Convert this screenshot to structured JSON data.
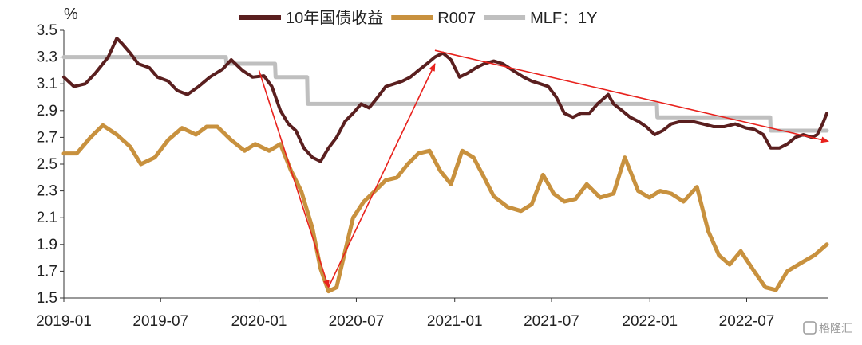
{
  "chart_data": {
    "type": "line",
    "ylabel": "%",
    "ylim": [
      1.5,
      3.5
    ],
    "yticks": [
      "3.5",
      "3.3",
      "3.1",
      "2.9",
      "2.7",
      "2.5",
      "2.3",
      "2.1",
      "1.9",
      "1.7",
      "1.5"
    ],
    "xticks": [
      "2019-01",
      "2019-07",
      "2020-01",
      "2020-07",
      "2021-01",
      "2021-07",
      "2022-01",
      "2022-07"
    ],
    "xlim": [
      "2019-01-01",
      "2022-12-01"
    ],
    "legend_position": "top",
    "grid": false,
    "series": [
      {
        "name": "10年国债收益",
        "color": "#5a1f1f",
        "x": [
          "2019-01-01",
          "2019-01-20",
          "2019-02-10",
          "2019-03-01",
          "2019-03-25",
          "2019-04-10",
          "2019-04-20",
          "2019-05-05",
          "2019-05-20",
          "2019-06-10",
          "2019-06-25",
          "2019-07-15",
          "2019-08-01",
          "2019-08-20",
          "2019-09-10",
          "2019-10-01",
          "2019-10-25",
          "2019-11-10",
          "2019-12-01",
          "2019-12-20",
          "2020-01-10",
          "2020-01-25",
          "2020-02-10",
          "2020-02-25",
          "2020-03-10",
          "2020-03-25",
          "2020-04-10",
          "2020-04-25",
          "2020-05-10",
          "2020-05-25",
          "2020-06-10",
          "2020-06-25",
          "2020-07-10",
          "2020-07-25",
          "2020-08-10",
          "2020-08-25",
          "2020-09-10",
          "2020-09-25",
          "2020-10-10",
          "2020-10-25",
          "2020-11-10",
          "2020-11-25",
          "2020-12-10",
          "2020-12-25",
          "2021-01-10",
          "2021-01-25",
          "2021-02-10",
          "2021-02-25",
          "2021-03-15",
          "2021-04-01",
          "2021-04-20",
          "2021-05-10",
          "2021-05-25",
          "2021-06-10",
          "2021-06-25",
          "2021-07-10",
          "2021-07-25",
          "2021-08-10",
          "2021-08-25",
          "2021-09-10",
          "2021-09-25",
          "2021-10-15",
          "2021-10-25",
          "2021-11-10",
          "2021-11-25",
          "2021-12-10",
          "2021-12-25",
          "2022-01-10",
          "2022-01-25",
          "2022-02-10",
          "2022-03-01",
          "2022-03-20",
          "2022-04-10",
          "2022-04-30",
          "2022-05-20",
          "2022-06-10",
          "2022-06-30",
          "2022-07-15",
          "2022-08-01",
          "2022-08-15",
          "2022-08-31",
          "2022-09-15",
          "2022-09-30",
          "2022-10-15",
          "2022-10-31",
          "2022-11-10",
          "2022-11-20",
          "2022-11-28"
        ],
        "values": [
          3.15,
          3.08,
          3.1,
          3.18,
          3.3,
          3.44,
          3.4,
          3.33,
          3.25,
          3.22,
          3.15,
          3.12,
          3.05,
          3.02,
          3.08,
          3.15,
          3.21,
          3.28,
          3.2,
          3.15,
          3.16,
          3.08,
          2.9,
          2.8,
          2.75,
          2.62,
          2.55,
          2.52,
          2.62,
          2.7,
          2.82,
          2.88,
          2.95,
          2.92,
          3.0,
          3.08,
          3.1,
          3.12,
          3.15,
          3.2,
          3.25,
          3.3,
          3.33,
          3.28,
          3.15,
          3.18,
          3.22,
          3.25,
          3.27,
          3.25,
          3.2,
          3.15,
          3.12,
          3.1,
          3.08,
          3.0,
          2.88,
          2.85,
          2.88,
          2.88,
          2.95,
          3.02,
          2.95,
          2.9,
          2.85,
          2.82,
          2.78,
          2.72,
          2.75,
          2.8,
          2.82,
          2.82,
          2.8,
          2.78,
          2.78,
          2.8,
          2.77,
          2.76,
          2.72,
          2.62,
          2.62,
          2.65,
          2.7,
          2.72,
          2.7,
          2.72,
          2.8,
          2.88
        ]
      },
      {
        "name": "R007",
        "color": "#c8913e",
        "x": [
          "2019-01-01",
          "2019-01-25",
          "2019-02-20",
          "2019-03-15",
          "2019-04-10",
          "2019-05-05",
          "2019-05-25",
          "2019-06-20",
          "2019-07-15",
          "2019-08-10",
          "2019-09-05",
          "2019-09-25",
          "2019-10-15",
          "2019-11-10",
          "2019-12-05",
          "2019-12-25",
          "2020-01-20",
          "2020-02-10",
          "2020-03-01",
          "2020-03-20",
          "2020-04-10",
          "2020-04-25",
          "2020-05-10",
          "2020-05-25",
          "2020-06-10",
          "2020-06-25",
          "2020-07-15",
          "2020-08-05",
          "2020-08-25",
          "2020-09-15",
          "2020-10-05",
          "2020-10-25",
          "2020-11-15",
          "2020-12-05",
          "2020-12-25",
          "2021-01-15",
          "2021-02-05",
          "2021-02-25",
          "2021-03-15",
          "2021-04-10",
          "2021-05-05",
          "2021-05-25",
          "2021-06-15",
          "2021-07-05",
          "2021-07-25",
          "2021-08-15",
          "2021-09-05",
          "2021-09-30",
          "2021-10-25",
          "2021-11-15",
          "2021-12-10",
          "2021-12-31",
          "2022-01-20",
          "2022-02-10",
          "2022-03-05",
          "2022-03-30",
          "2022-04-20",
          "2022-05-10",
          "2022-05-30",
          "2022-06-20",
          "2022-07-15",
          "2022-08-05",
          "2022-08-25",
          "2022-09-15",
          "2022-10-10",
          "2022-11-05",
          "2022-11-28"
        ],
        "values": [
          2.58,
          2.58,
          2.7,
          2.79,
          2.72,
          2.63,
          2.5,
          2.55,
          2.68,
          2.77,
          2.72,
          2.78,
          2.78,
          2.68,
          2.6,
          2.65,
          2.6,
          2.65,
          2.45,
          2.3,
          2.02,
          1.72,
          1.55,
          1.58,
          1.85,
          2.1,
          2.22,
          2.3,
          2.38,
          2.4,
          2.5,
          2.58,
          2.6,
          2.45,
          2.35,
          2.6,
          2.55,
          2.4,
          2.26,
          2.18,
          2.15,
          2.2,
          2.42,
          2.28,
          2.22,
          2.24,
          2.35,
          2.25,
          2.28,
          2.55,
          2.3,
          2.25,
          2.3,
          2.28,
          2.22,
          2.33,
          2.0,
          1.82,
          1.75,
          1.85,
          1.7,
          1.58,
          1.56,
          1.7,
          1.76,
          1.82,
          1.9
        ]
      },
      {
        "name": "MLF：1Y",
        "color": "#bfbfbf",
        "x": [
          "2019-01-01",
          "2019-10-31",
          "2019-11-01",
          "2020-01-31",
          "2020-02-01",
          "2020-03-31",
          "2020-04-01",
          "2022-01-14",
          "2022-01-15",
          "2022-08-14",
          "2022-08-15",
          "2022-11-28"
        ],
        "values": [
          3.3,
          3.3,
          3.25,
          3.25,
          3.15,
          3.15,
          2.95,
          2.95,
          2.85,
          2.85,
          2.75,
          2.75
        ]
      }
    ],
    "annotations": [
      {
        "type": "arrow",
        "from": {
          "x": "2020-01-01",
          "y": 3.2
        },
        "to": {
          "x": "2020-05-10",
          "y": 1.58
        },
        "color": "#e8221d"
      },
      {
        "type": "arrow",
        "from": {
          "x": "2020-05-10",
          "y": 1.58
        },
        "to": {
          "x": "2020-11-25",
          "y": 3.25
        },
        "color": "#e8221d"
      },
      {
        "type": "arrow",
        "from": {
          "x": "2020-11-25",
          "y": 3.35
        },
        "to": {
          "x": "2022-12-01",
          "y": 2.67
        },
        "color": "#e8221d"
      }
    ]
  },
  "watermark": "格隆汇"
}
